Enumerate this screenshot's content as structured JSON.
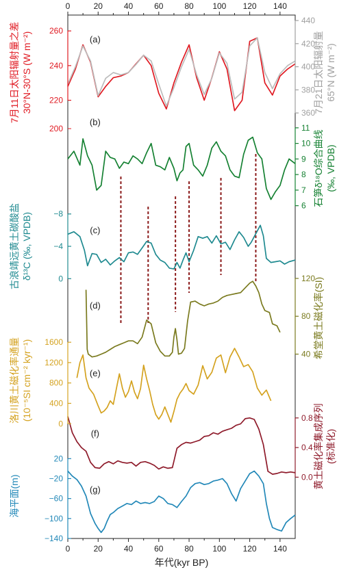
{
  "chart_data": {
    "type": "line",
    "x_axis": {
      "label": "年代(kyr BP)",
      "range": [
        0,
        150
      ],
      "ticks": [
        "0",
        "20",
        "40",
        "60",
        "80",
        "100",
        "120",
        "140"
      ],
      "tick_values": [
        0,
        20,
        40,
        60,
        80,
        100,
        120,
        140
      ]
    },
    "panels": [
      {
        "id": "a",
        "label": "(a)",
        "left_axis": {
          "title_lines": [
            "7月11日太阳辐射量之差",
            "30°N-30°S (W m⁻²)"
          ],
          "color": "#e01a22",
          "range": [
            206,
            266
          ],
          "ticks": [
            220,
            240,
            260
          ]
        },
        "right_axis": {
          "title_lines": [
            "7月21日太阳辐射量",
            "65°N (W m⁻²)"
          ],
          "color": "#a0a0a0",
          "range": [
            350,
            440
          ],
          "ticks": [
            360,
            380,
            400,
            420,
            440
          ]
        },
        "series": [
          {
            "color": "#e01a22",
            "axis": "left",
            "x": [
              0,
              5,
              10,
              15,
              20,
              25,
              30,
              35,
              40,
              45,
              50,
              55,
              60,
              65,
              70,
              75,
              80,
              85,
              90,
              95,
              100,
              105,
              110,
              115,
              120,
              125,
              130,
              135,
              140,
              145,
              150
            ],
            "y": [
              228,
              238,
              252,
              242,
              222,
              228,
              233,
              234,
              236,
              241,
              246,
              240,
              224,
              215,
              230,
              242,
              252,
              233,
              220,
              233,
              248,
              238,
              214,
              220,
              254,
              256,
              230,
              223,
              234,
              238,
              241
            ]
          },
          {
            "color": "#bcbcbc",
            "axis": "right",
            "x": [
              0,
              5,
              10,
              15,
              20,
              25,
              30,
              35,
              40,
              45,
              50,
              55,
              60,
              65,
              70,
              75,
              80,
              85,
              90,
              95,
              100,
              105,
              110,
              115,
              120,
              125,
              130,
              135,
              140,
              145,
              150
            ],
            "y": [
              385,
              400,
              418,
              405,
              375,
              390,
              395,
              393,
              395,
              402,
              410,
              405,
              385,
              366,
              382,
              400,
              415,
              393,
              376,
              390,
              412,
              403,
              372,
              378,
              418,
              425,
              395,
              381,
              394,
              401,
              405
            ]
          }
        ]
      },
      {
        "id": "b",
        "label": "(b)",
        "right_axis": {
          "title_lines": [
            "石笋δ¹⁸O综合曲线",
            "(‰, VPDB)"
          ],
          "color": "#158132",
          "range": [
            5.5,
            11.3
          ],
          "ticks": [
            6,
            7,
            8,
            9,
            10,
            11
          ],
          "reversed": true
        },
        "extra_left_tick": {
          "value": "200",
          "color": "#e01a22"
        },
        "series": [
          {
            "color": "#158132",
            "axis": "right",
            "x": [
              0,
              4,
              8,
              10,
              13,
              16,
              19,
              22,
              25,
              28,
              31,
              34,
              37,
              40,
              43,
              46,
              49,
              52,
              55,
              58,
              61,
              64,
              67,
              70,
              72,
              74,
              76,
              78,
              80,
              83,
              86,
              89,
              92,
              95,
              98,
              101,
              104,
              107,
              110,
              113,
              116,
              119,
              122,
              125,
              128,
              131,
              134,
              137,
              140,
              143,
              146,
              150
            ],
            "y": [
              9.0,
              9.5,
              8.6,
              10.3,
              9.2,
              8.6,
              7.0,
              7.3,
              9.5,
              9.1,
              9.0,
              8.4,
              8.8,
              8.7,
              9.2,
              9.0,
              8.7,
              9.4,
              10.0,
              8.6,
              8.5,
              8.3,
              9.1,
              8.4,
              7.6,
              8.1,
              8.3,
              9.8,
              10.0,
              8.6,
              8.3,
              7.9,
              8.6,
              9.7,
              10.1,
              9.5,
              9.2,
              8.3,
              7.9,
              7.8,
              9.3,
              10.2,
              10.4,
              9.4,
              9.0,
              7.1,
              6.4,
              6.9,
              7.3,
              8.3,
              9.0,
              8.7
            ]
          }
        ]
      },
      {
        "id": "c",
        "label": "(c)",
        "left_axis": {
          "title_lines": [
            "古浪靖远黄土碳酸盐",
            "δ¹³C (‰, VPDB)"
          ],
          "color": "#1f8a90",
          "range": [
            1.5,
            -9.5
          ],
          "ticks": [
            -8,
            -4,
            0
          ],
          "reversed": true
        },
        "series": [
          {
            "color": "#1f8a90",
            "axis": "left",
            "x": [
              0,
              4,
              8,
              11,
              13,
              16,
              19,
              22,
              25,
              28,
              31,
              34,
              37,
              40,
              43,
              46,
              49,
              52,
              55,
              58,
              61,
              64,
              67,
              70,
              72,
              74,
              76,
              78,
              80,
              83,
              86,
              89,
              92,
              95,
              98,
              101,
              104,
              107,
              110,
              113,
              116,
              119,
              121,
              123,
              125,
              127,
              129,
              131,
              134,
              137,
              140,
              143,
              146,
              150
            ],
            "y": [
              -5.5,
              -5.8,
              -5.2,
              -3.5,
              -1.6,
              -3.1,
              -3.0,
              -2.0,
              -2.4,
              -1.7,
              -2.2,
              -2.6,
              -2.1,
              -3.2,
              -3.3,
              -3.0,
              -3.8,
              -4.6,
              -4.4,
              -3.0,
              -2.3,
              -2.0,
              -1.3,
              -1.2,
              -2.0,
              -1.3,
              -2.3,
              -3.2,
              -2.1,
              -3.5,
              -5.2,
              -5.0,
              -5.2,
              -4.4,
              -5.3,
              -4.3,
              -4.5,
              -3.6,
              -4.8,
              -5.8,
              -5.1,
              -4.0,
              -4.5,
              -5.2,
              -5.9,
              -6.6,
              -5.3,
              -2.5,
              -2.0,
              -2.1,
              -2.2,
              -1.8,
              -2.1,
              -2.3
            ]
          }
        ]
      },
      {
        "id": "d",
        "label": "(d)",
        "right_axis": {
          "title_lines": [
            "希堂黄土磁化率(SI)"
          ],
          "color": "#7a7a1e",
          "range": [
            31,
            125
          ],
          "ticks": [
            40,
            80,
            120
          ]
        },
        "series": [
          {
            "color": "#7a7a1e",
            "axis": "right",
            "x": [
              12,
              12.8,
              13.5,
              16,
              19,
              22,
              25,
              28,
              31,
              34,
              37,
              40,
              43,
              46,
              49,
              52,
              55,
              58,
              61,
              64,
              67,
              69,
              70,
              71,
              72,
              73,
              75,
              77,
              79,
              81,
              84,
              87,
              90,
              93,
              96,
              99,
              102,
              105,
              108,
              111,
              114,
              117,
              120,
              122,
              124,
              126,
              128,
              130,
              133,
              135,
              138,
              140
            ],
            "y": [
              108,
              45,
              40,
              37,
              38,
              40,
              42,
              45,
              48,
              50,
              52,
              54,
              54,
              51,
              58,
              76,
              72,
              52,
              43,
              38,
              38,
              42,
              58,
              67,
              55,
              40,
              41,
              46,
              75,
              95,
              96,
              93,
              91,
              93,
              94,
              96,
              100,
              102,
              103,
              104,
              105,
              110,
              115,
              117,
              112,
              105,
              93,
              86,
              84,
              72,
              70,
              63
            ]
          }
        ]
      },
      {
        "id": "e",
        "label": "(e)",
        "left_axis": {
          "title_lines": [
            "洛川黄土磁化率通量",
            "(10⁻⁵SI cm⁻² kyr⁻¹)"
          ],
          "color": "#d4a21f",
          "range": [
            -10,
            1710
          ],
          "ticks": [
            0,
            400,
            800,
            1200,
            1600
          ]
        },
        "series": [
          {
            "color": "#d4a21f",
            "axis": "left",
            "x": [
              6,
              8,
              10,
              12,
              14,
              17,
              20,
              22,
              24,
              26,
              28,
              30,
              32,
              34,
              36,
              38,
              40,
              42,
              44,
              46,
              48,
              50,
              52,
              54,
              56,
              58,
              60,
              62,
              64,
              66,
              68,
              70,
              72,
              74,
              76,
              78,
              80,
              83,
              86,
              89,
              92,
              95,
              98,
              101,
              104,
              107,
              110,
              113,
              116,
              119,
              122,
              125,
              128,
              131,
              134
            ],
            "y": [
              900,
              1200,
              1350,
              900,
              700,
              580,
              350,
              210,
              250,
              320,
              450,
              380,
              680,
              980,
              700,
              520,
              630,
              840,
              620,
              490,
              690,
              1150,
              880,
              650,
              380,
              180,
              90,
              180,
              330,
              180,
              30,
              240,
              480,
              600,
              680,
              790,
              650,
              580,
              760,
              1140,
              880,
              1010,
              1290,
              1350,
              1000,
              1310,
              1480,
              1310,
              1120,
              1160,
              1020,
              700,
              560,
              660,
              450
            ]
          }
        ]
      },
      {
        "id": "f",
        "label": "(f)",
        "right_axis": {
          "title_lines": [
            "黄土磁化率集成序列",
            "(标准化)"
          ],
          "color": "#8e1a2a",
          "range": [
            -0.07,
            0.9
          ],
          "ticks": [
            0.0,
            0.4,
            0.8
          ],
          "tick_labels": [
            "0.0",
            "0.4",
            "0.8"
          ]
        },
        "series": [
          {
            "color": "#8e1a2a",
            "axis": "right",
            "x": [
              0,
              3,
              6,
              9,
              12,
              15,
              18,
              21,
              24,
              27,
              30,
              33,
              36,
              39,
              42,
              45,
              48,
              51,
              54,
              57,
              60,
              63,
              66,
              69,
              72,
              75,
              78,
              81,
              84,
              87,
              90,
              93,
              96,
              99,
              102,
              105,
              108,
              111,
              114,
              117,
              120,
              123,
              126,
              129,
              132,
              135,
              138,
              141,
              144,
              147,
              150
            ],
            "y": [
              0.82,
              0.6,
              0.48,
              0.4,
              0.35,
              0.2,
              0.13,
              0.12,
              0.18,
              0.21,
              0.18,
              0.22,
              0.2,
              0.19,
              0.2,
              0.15,
              0.2,
              0.21,
              0.19,
              0.16,
              0.11,
              0.14,
              0.12,
              0.13,
              0.39,
              0.44,
              0.47,
              0.46,
              0.48,
              0.5,
              0.55,
              0.56,
              0.6,
              0.58,
              0.62,
              0.64,
              0.66,
              0.7,
              0.72,
              0.79,
              0.8,
              0.78,
              0.65,
              0.44,
              0.08,
              0.04,
              0.05,
              0.07,
              0.06,
              0.07,
              0.06
            ]
          }
        ]
      },
      {
        "id": "g",
        "label": "(g)",
        "left_axis": {
          "title_lines": [
            "海平面(m)"
          ],
          "color": "#2288b8",
          "range": [
            -140,
            30
          ],
          "ticks": [
            -140,
            -100,
            -60,
            -20,
            20
          ]
        },
        "series": [
          {
            "color": "#2288b8",
            "axis": "left",
            "x": [
              0,
              3,
              6,
              9,
              12,
              15,
              18,
              20,
              22,
              24,
              26,
              28,
              30,
              33,
              36,
              39,
              42,
              45,
              48,
              51,
              54,
              57,
              60,
              63,
              66,
              69,
              72,
              75,
              78,
              81,
              84,
              87,
              90,
              93,
              96,
              99,
              102,
              105,
              108,
              111,
              114,
              117,
              120,
              123,
              126,
              129,
              131,
              133,
              135,
              138,
              141,
              144,
              147,
              150
            ],
            "y": [
              -5,
              -15,
              -22,
              -35,
              -55,
              -90,
              -110,
              -120,
              -128,
              -120,
              -105,
              -92,
              -88,
              -80,
              -75,
              -70,
              -72,
              -65,
              -70,
              -68,
              -70,
              -66,
              -55,
              -60,
              -70,
              -72,
              -78,
              -66,
              -55,
              -38,
              -30,
              -28,
              -32,
              -30,
              -25,
              -23,
              -20,
              -30,
              -50,
              -65,
              -40,
              -25,
              -10,
              -5,
              -15,
              -30,
              -70,
              -100,
              -118,
              -122,
              -125,
              -108,
              -100,
              -93
            ]
          }
        ]
      }
    ],
    "correlation_lines": {
      "color": "#8b1a1a",
      "style": "dashed",
      "x": [
        35,
        53,
        71,
        80,
        101,
        124
      ]
    }
  }
}
